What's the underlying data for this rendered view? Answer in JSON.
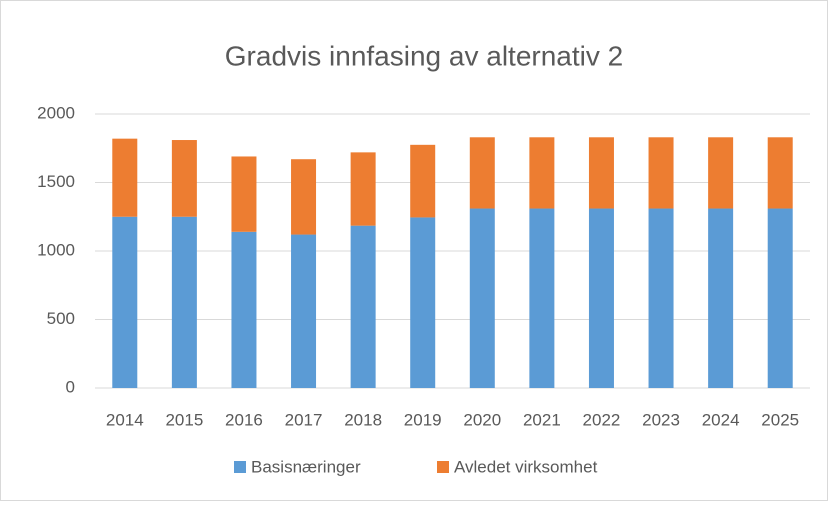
{
  "chart_data": {
    "type": "stacked_bar",
    "title": "Gradvis innfasing av alternativ 2",
    "categories": [
      "2014",
      "2015",
      "2016",
      "2017",
      "2018",
      "2019",
      "2020",
      "2021",
      "2022",
      "2023",
      "2024",
      "2025"
    ],
    "series": [
      {
        "name": "Basisnæringer",
        "color": "#5b9bd5",
        "values": [
          1250,
          1250,
          1140,
          1120,
          1185,
          1245,
          1310,
          1310,
          1310,
          1310,
          1310,
          1310
        ]
      },
      {
        "name": "Avledet virksomhet",
        "color": "#ed7d31",
        "values": [
          570,
          560,
          550,
          550,
          535,
          530,
          520,
          520,
          520,
          520,
          520,
          520
        ]
      }
    ],
    "ylim": [
      0,
      2000
    ],
    "yticks": [
      0,
      500,
      1000,
      1500,
      2000
    ],
    "grid": true,
    "legend": "bottom"
  }
}
